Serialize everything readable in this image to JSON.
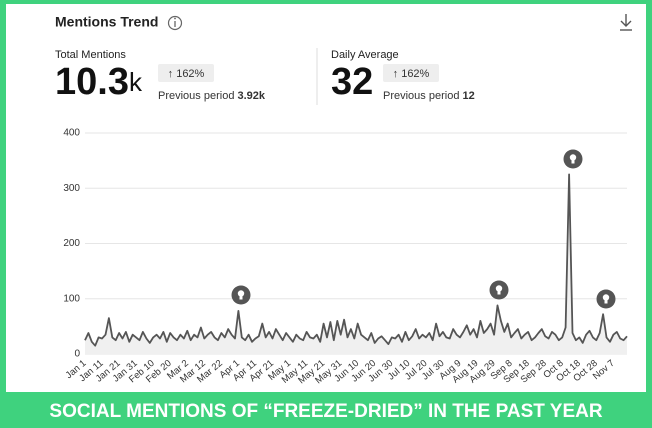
{
  "header": {
    "title": "Mentions Trend"
  },
  "stats": [
    {
      "label": "Total Mentions",
      "value": "10.3",
      "unit": "k",
      "change": "↑ 162%",
      "previous_label": "Previous period",
      "previous_value": "3.92k"
    },
    {
      "label": "Daily Average",
      "value": "32",
      "unit": "",
      "change": "↑ 162%",
      "previous_label": "Previous period",
      "previous_value": "12"
    }
  ],
  "chart_data": {
    "type": "line",
    "categories": [
      "Jan 1",
      null,
      null,
      null,
      null,
      "Jan 11",
      null,
      null,
      null,
      null,
      "Jan 21",
      null,
      null,
      null,
      null,
      "Jan 31",
      null,
      null,
      null,
      null,
      "Feb 10",
      null,
      null,
      null,
      null,
      "Feb 20",
      null,
      null,
      null,
      null,
      "Mar 2",
      null,
      null,
      null,
      null,
      "Mar 12",
      null,
      null,
      null,
      null,
      "Mar 22",
      null,
      null,
      null,
      null,
      "Apr 1",
      null,
      null,
      null,
      null,
      "Apr 11",
      null,
      null,
      null,
      null,
      "Apr 21",
      null,
      null,
      null,
      null,
      "May 1",
      null,
      null,
      null,
      null,
      "May 11",
      null,
      null,
      null,
      null,
      "May 21",
      null,
      null,
      null,
      null,
      "May 31",
      null,
      null,
      null,
      null,
      "Jun 10",
      null,
      null,
      null,
      null,
      "Jun 20",
      null,
      null,
      null,
      null,
      "Jun 30",
      null,
      null,
      null,
      null,
      "Jul 10",
      null,
      null,
      null,
      null,
      "Jul 20",
      null,
      null,
      null,
      null,
      "Jul 30",
      null,
      null,
      null,
      null,
      "Aug 9",
      null,
      null,
      null,
      null,
      "Aug 19",
      null,
      null,
      null,
      null,
      "Aug 29",
      null,
      null,
      null,
      null,
      "Sep 8",
      null,
      null,
      null,
      null,
      "Sep 18",
      null,
      null,
      null,
      null,
      "Sep 28",
      null,
      null,
      null,
      null,
      "Oct 8",
      null,
      null,
      null,
      null,
      "Oct 18",
      null,
      null,
      null,
      null,
      "Oct 28",
      null,
      null,
      null,
      null,
      "Nov 7",
      null,
      null,
      null,
      null
    ],
    "values": [
      25,
      38,
      22,
      15,
      30,
      28,
      35,
      65,
      30,
      25,
      38,
      28,
      40,
      22,
      35,
      30,
      25,
      40,
      28,
      20,
      30,
      35,
      28,
      40,
      22,
      38,
      30,
      25,
      35,
      28,
      42,
      25,
      35,
      30,
      48,
      28,
      35,
      40,
      30,
      25,
      38,
      30,
      45,
      35,
      28,
      78,
      30,
      25,
      35,
      22,
      28,
      32,
      55,
      30,
      40,
      28,
      45,
      35,
      25,
      38,
      30,
      22,
      35,
      28,
      25,
      40,
      30,
      28,
      35,
      22,
      55,
      30,
      58,
      25,
      60,
      35,
      62,
      30,
      45,
      28,
      55,
      35,
      30,
      25,
      38,
      20,
      28,
      32,
      25,
      18,
      30,
      28,
      35,
      22,
      40,
      25,
      32,
      45,
      28,
      35,
      30,
      38,
      25,
      55,
      32,
      40,
      30,
      28,
      45,
      35,
      30,
      40,
      52,
      35,
      45,
      30,
      60,
      38,
      45,
      55,
      35,
      88,
      60,
      40,
      55,
      30,
      38,
      45,
      28,
      35,
      40,
      25,
      30,
      38,
      45,
      32,
      28,
      40,
      35,
      25,
      30,
      48,
      325,
      38,
      25,
      30,
      20,
      35,
      42,
      30,
      25,
      38,
      72,
      30,
      22,
      35,
      40,
      28,
      25,
      32
    ],
    "color": "#555555",
    "ylim": [
      0,
      400
    ],
    "yticks": [
      0,
      100,
      200,
      300,
      400
    ],
    "grid": true
  },
  "banner": "SOCIAL MENTIONS OF “FREEZE-DRIED” IN THE PAST YEAR"
}
